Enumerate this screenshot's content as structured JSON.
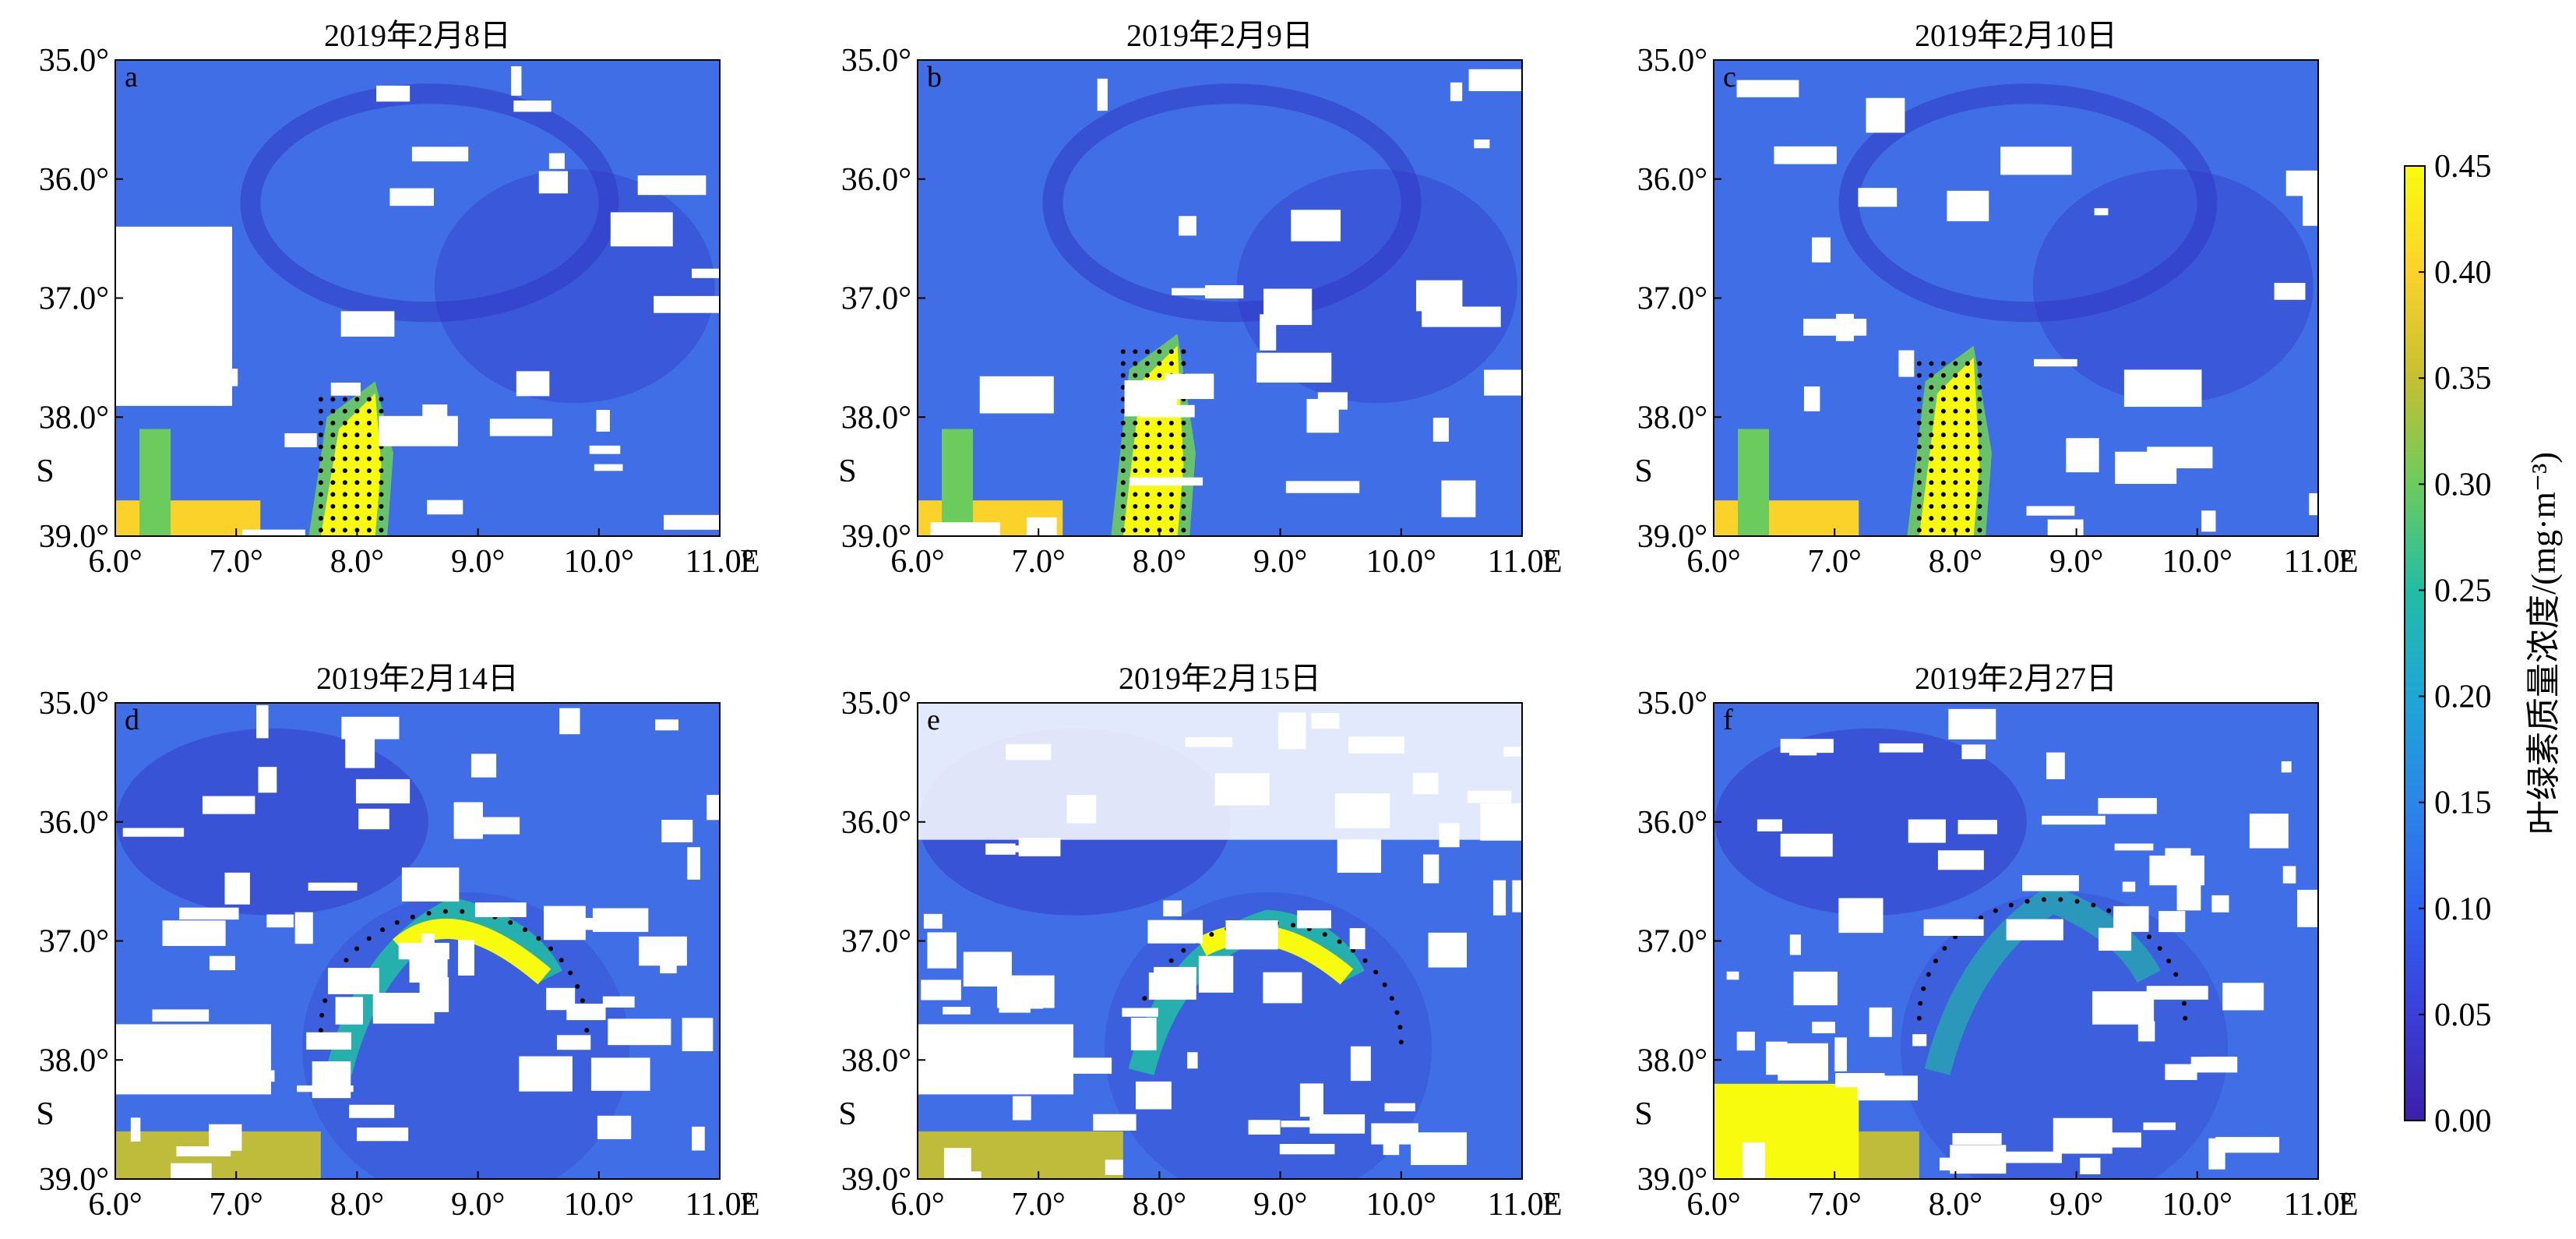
{
  "chart_data": [
    {
      "type": "heatmap",
      "panel": "a",
      "title": "2019年2月8日",
      "variable": "chlorophyll-a",
      "xlim": [
        6.0,
        11.0
      ],
      "ylim": [
        35.0,
        39.0
      ],
      "x_ticks": [
        "6.0°",
        "7.0°",
        "8.0°",
        "9.0°",
        "10.0°",
        "11.0°"
      ],
      "x_unit": "E",
      "y_ticks": [
        "35.0°",
        "36.0°",
        "37.0°",
        "38.0°",
        "39.0°"
      ],
      "y_unit": "S",
      "features": {
        "filament_center_lon": 7.95,
        "front_shape": "meridional filament",
        "high_value_band": [
          37.7,
          39.0
        ]
      }
    },
    {
      "type": "heatmap",
      "panel": "b",
      "title": "2019年2月9日",
      "variable": "chlorophyll-a",
      "xlim": [
        6.0,
        11.0
      ],
      "ylim": [
        35.0,
        39.0
      ],
      "x_ticks": [
        "6.0°",
        "7.0°",
        "8.0°",
        "9.0°",
        "10.0°",
        "11.0°"
      ],
      "x_unit": "E",
      "y_ticks": [
        "35.0°",
        "36.0°",
        "37.0°",
        "38.0°",
        "39.0°"
      ],
      "y_unit": "S",
      "features": {
        "filament_center_lon": 7.95,
        "front_shape": "meridional filament",
        "high_value_band": [
          37.3,
          39.0
        ]
      }
    },
    {
      "type": "heatmap",
      "panel": "c",
      "title": "2019年2月10日",
      "variable": "chlorophyll-a",
      "xlim": [
        6.0,
        11.0
      ],
      "ylim": [
        35.0,
        39.0
      ],
      "x_ticks": [
        "6.0°",
        "7.0°",
        "8.0°",
        "9.0°",
        "10.0°",
        "11.0°"
      ],
      "x_unit": "E",
      "y_ticks": [
        "35.0°",
        "36.0°",
        "37.0°",
        "38.0°",
        "39.0°"
      ],
      "y_unit": "S",
      "features": {
        "filament_center_lon": 7.95,
        "front_shape": "meridional filament",
        "high_value_band": [
          37.4,
          39.0
        ]
      }
    },
    {
      "type": "heatmap",
      "panel": "d",
      "title": "2019年2月14日",
      "variable": "chlorophyll-a",
      "xlim": [
        6.0,
        11.0
      ],
      "ylim": [
        35.0,
        39.0
      ],
      "x_ticks": [
        "6.0°",
        "7.0°",
        "8.0°",
        "9.0°",
        "10.0°",
        "11.0°"
      ],
      "x_unit": "E",
      "y_ticks": [
        "35.0°",
        "36.0°",
        "37.0°",
        "38.0°",
        "39.0°"
      ],
      "y_unit": "S",
      "features": {
        "front_shape": "eddy arc",
        "arc_peak": [
          8.8,
          36.7
        ]
      }
    },
    {
      "type": "heatmap",
      "panel": "e",
      "title": "2019年2月15日",
      "variable": "chlorophyll-a",
      "xlim": [
        6.0,
        11.0
      ],
      "ylim": [
        35.0,
        39.0
      ],
      "x_ticks": [
        "6.0°",
        "7.0°",
        "8.0°",
        "9.0°",
        "10.0°",
        "11.0°"
      ],
      "x_unit": "E",
      "y_ticks": [
        "35.0°",
        "36.0°",
        "37.0°",
        "38.0°",
        "39.0°"
      ],
      "y_unit": "S",
      "features": {
        "front_shape": "eddy arc",
        "arc_peak": [
          8.9,
          36.8
        ]
      }
    },
    {
      "type": "heatmap",
      "panel": "f",
      "title": "2019年2月27日",
      "variable": "chlorophyll-a",
      "xlim": [
        6.0,
        11.0
      ],
      "ylim": [
        35.0,
        39.0
      ],
      "x_ticks": [
        "6.0°",
        "7.0°",
        "8.0°",
        "9.0°",
        "10.0°",
        "11.0°"
      ],
      "x_unit": "E",
      "y_ticks": [
        "35.0°",
        "36.0°",
        "37.0°",
        "38.0°",
        "39.0°"
      ],
      "y_unit": "S",
      "features": {
        "front_shape": "diffuse arc",
        "arc_peak": [
          8.8,
          36.6
        ]
      }
    }
  ],
  "colorbar": {
    "label": "叶绿素质量浓度/(mg·m⁻³)",
    "range": [
      0.0,
      0.45
    ],
    "ticks": [
      "0.00",
      "0.05",
      "0.10",
      "0.15",
      "0.20",
      "0.25",
      "0.30",
      "0.35",
      "0.40",
      "0.45"
    ],
    "colors": [
      "#3d1ea8",
      "#3a3fd8",
      "#2f62f0",
      "#2b86e8",
      "#1ea6d6",
      "#22bda4",
      "#6ccb5d",
      "#c6bf31",
      "#fbd22a",
      "#f9fb0e"
    ]
  },
  "style": {
    "background_blue": "#3f6ee6",
    "deep_blue": "#3034c4",
    "cloud_mask": "#ffffff",
    "front_point_color": "#000000"
  }
}
